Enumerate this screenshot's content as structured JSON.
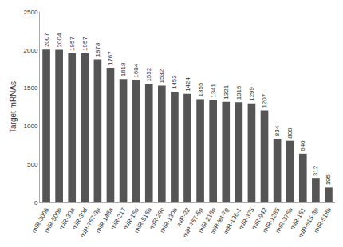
{
  "chart_data": {
    "type": "bar",
    "categories": [
      "miR-3006",
      "miR-500b",
      "miR-30a",
      "miR-30d",
      "miR-767-3p",
      "miR-148a",
      "miR-217",
      "miR-16o",
      "miR-516b",
      "miR-29c",
      "miR-130b",
      "miR-22",
      "miR-767-5p",
      "miR-216b",
      "miR-let-7g",
      "miR-136-1",
      "miR-375",
      "miR-942",
      "miR-1285",
      "miR-376b",
      "miR-151",
      "miR-615-3p",
      "miR-518b"
    ],
    "values": [
      2007,
      2004,
      1957,
      1957,
      1878,
      1767,
      1618,
      1604,
      1552,
      1532,
      1453,
      1424,
      1355,
      1341,
      1321,
      1315,
      1299,
      1207,
      834,
      809,
      640,
      312,
      195
    ],
    "color": "#555555",
    "ylabel": "Target mRNAs",
    "ylim": [
      0,
      2500
    ],
    "yticks": [
      0,
      500,
      1000,
      1500,
      2000,
      2500
    ],
    "grid": false,
    "data_labels": true
  }
}
